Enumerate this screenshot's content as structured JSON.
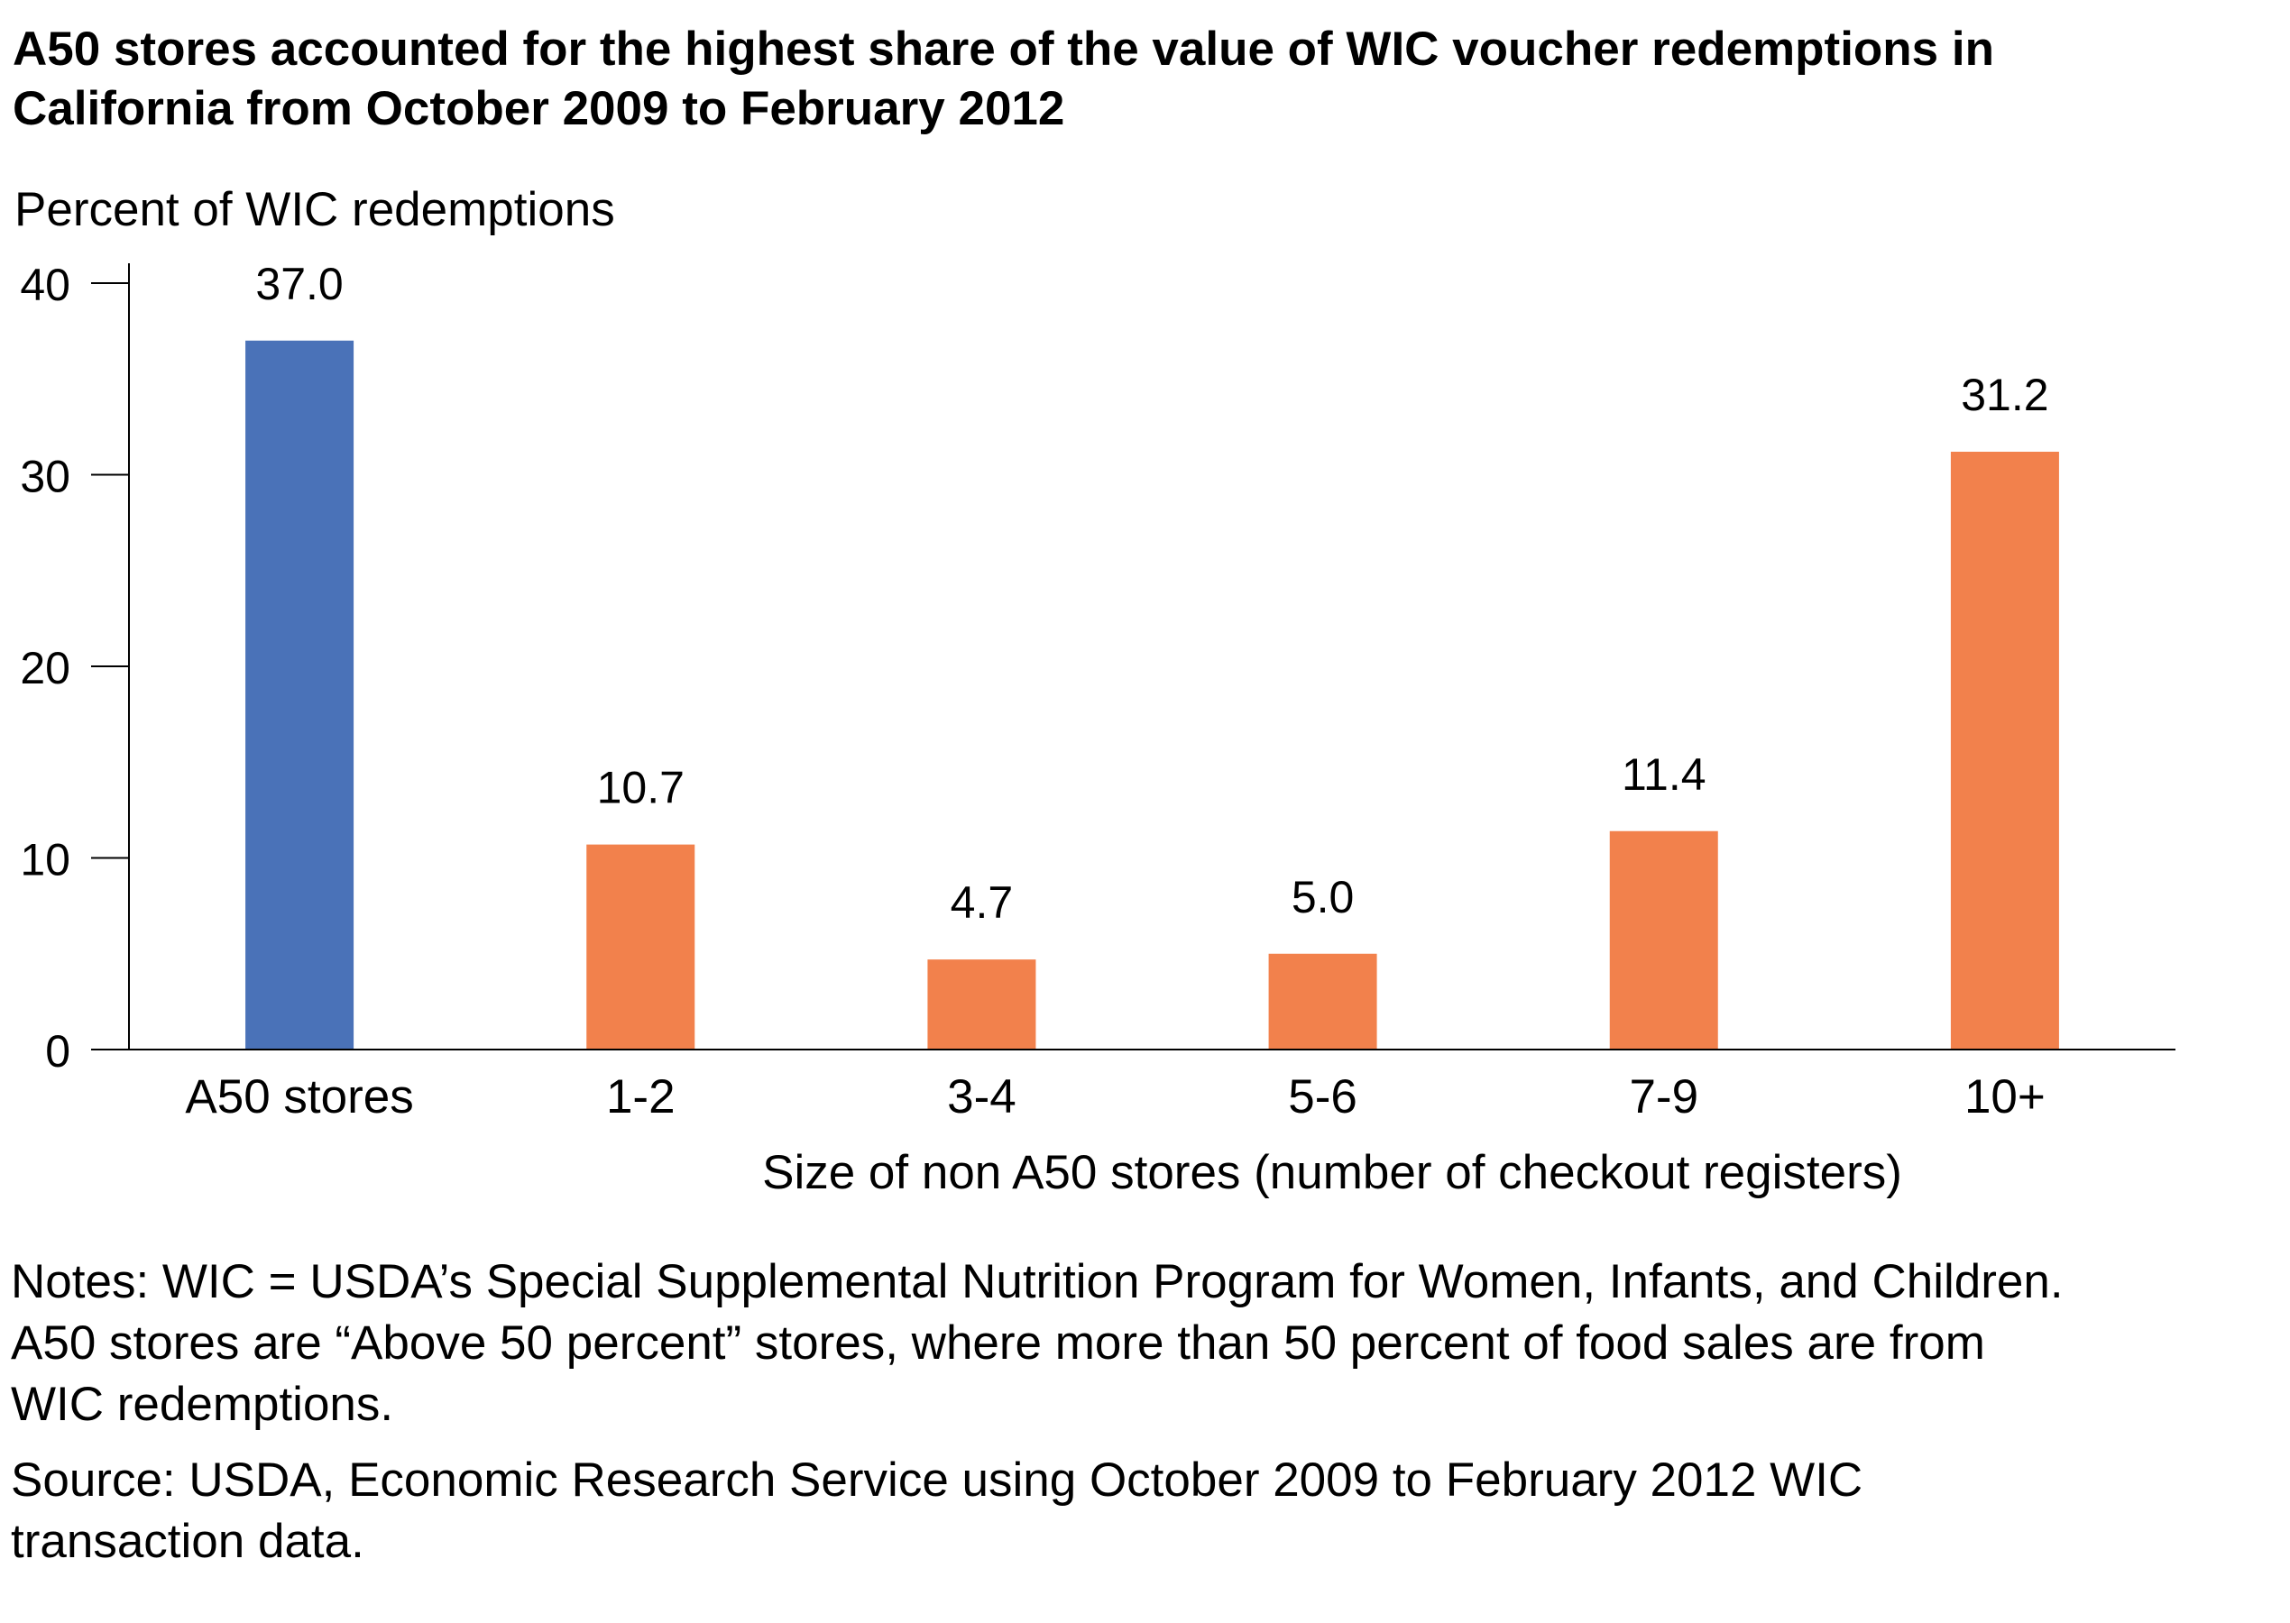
{
  "title": {
    "line1": "A50 stores accounted for the highest share of the value of WIC voucher redemptions in",
    "line2": "California from October 2009 to February 2012"
  },
  "chart_data": {
    "type": "bar",
    "title": "A50 stores accounted for the highest share of the value of WIC voucher redemptions in California from October 2009 to February 2012",
    "ylabel": "Percent of WIC redemptions",
    "xlabel": "Size of non A50 stores (number of checkout registers)",
    "categories": [
      "A50 stores",
      "1-2",
      "3-4",
      "5-6",
      "7-9",
      "10+"
    ],
    "values": [
      37.0,
      10.7,
      4.7,
      5.0,
      11.4,
      31.2
    ],
    "value_labels": [
      "37.0",
      "10.7",
      "4.7",
      "5.0",
      "11.4",
      "31.2"
    ],
    "colors": [
      "#4a72b8",
      "#f2814c",
      "#f2814c",
      "#f2814c",
      "#f2814c",
      "#f2814c"
    ],
    "ylim": [
      0,
      40
    ],
    "yticks": [
      0,
      10,
      20,
      30,
      40
    ],
    "grid": false,
    "legend": "none"
  },
  "notes": {
    "line1": "Notes: WIC = USDA’s Special Supplemental Nutrition Program for Women, Infants, and Children.",
    "line2": "A50 stores are “Above 50 percent” stores, where more than 50 percent of food sales are from",
    "line3": "WIC redemptions."
  },
  "source": {
    "line1": "Source: USDA, Economic Research Service using October 2009 to February 2012 WIC",
    "line2": "transaction data."
  }
}
